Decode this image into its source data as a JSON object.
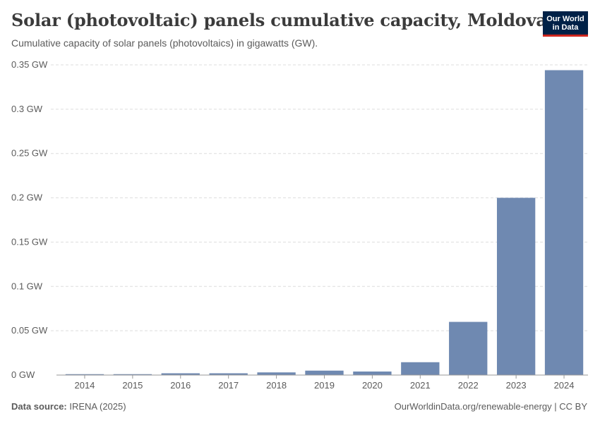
{
  "header": {
    "title": "Solar (photovoltaic) panels cumulative capacity, Moldova",
    "subtitle": "Cumulative capacity of solar panels (photovoltaics) in gigawatts (GW)."
  },
  "logo": {
    "line1": "Our World",
    "line2": "in Data"
  },
  "footer": {
    "source_label": "Data source:",
    "source_value": "IRENA (2025)",
    "credit": "OurWorldinData.org/renewable-energy | CC BY"
  },
  "colors": {
    "bar": "#6f89b1",
    "grid": "#dddddd",
    "axis": "#999999",
    "text": "#5b5b5b"
  },
  "chart_data": {
    "type": "bar",
    "title": "Solar (photovoltaic) panels cumulative capacity, Moldova",
    "xlabel": "",
    "ylabel": "",
    "unit": "GW",
    "ylim": [
      0,
      0.35
    ],
    "yticks": [
      0,
      0.05,
      0.1,
      0.15,
      0.2,
      0.25,
      0.3,
      0.35
    ],
    "ytick_labels": [
      "0 GW",
      "0.05 GW",
      "0.1 GW",
      "0.15 GW",
      "0.2 GW",
      "0.25 GW",
      "0.3 GW",
      "0.35 GW"
    ],
    "grid": true,
    "categories": [
      "2014",
      "2015",
      "2016",
      "2017",
      "2018",
      "2019",
      "2020",
      "2021",
      "2022",
      "2023",
      "2024"
    ],
    "values": [
      0.001,
      0.001,
      0.002,
      0.002,
      0.003,
      0.005,
      0.004,
      0.0145,
      0.06,
      0.2,
      0.344
    ]
  }
}
